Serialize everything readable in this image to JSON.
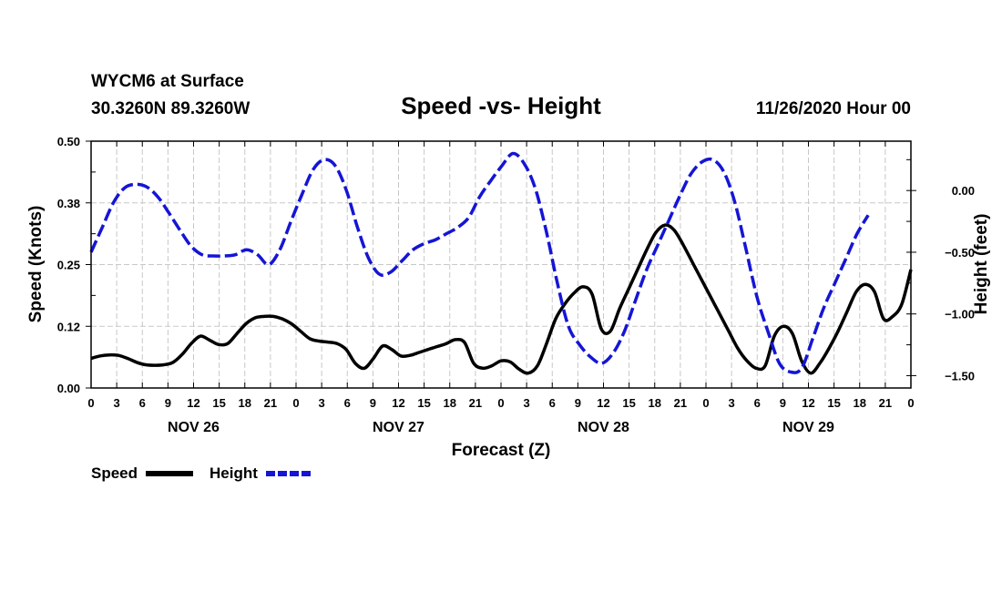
{
  "header": {
    "station": "WYCM6 at Surface",
    "location": "30.3260N 89.3260W",
    "title": "Speed -vs- Height",
    "datetime": "11/26/2020 Hour 00"
  },
  "chart_data": {
    "type": "line",
    "title": "Speed -vs- Height",
    "xlabel": "Forecast (Z)",
    "ylabel": "Speed (Knots)",
    "y2label": "Height (feet)",
    "x_unit": "hours from NOV 26 00Z",
    "xlim": [
      0,
      96
    ],
    "ylim": [
      0,
      0.5
    ],
    "y2lim": [
      -1.6,
      0.4
    ],
    "x_ticks": [
      0,
      3,
      6,
      9,
      12,
      15,
      18,
      21,
      24,
      27,
      30,
      33,
      36,
      39,
      42,
      45,
      48,
      51,
      54,
      57,
      60,
      63,
      66,
      69,
      72,
      75,
      78,
      81,
      84,
      87,
      90,
      93,
      96
    ],
    "x_tick_labels": [
      "0",
      "3",
      "6",
      "9",
      "12",
      "15",
      "18",
      "21",
      "0",
      "3",
      "6",
      "9",
      "12",
      "15",
      "18",
      "21",
      "0",
      "3",
      "6",
      "9",
      "12",
      "15",
      "18",
      "21",
      "0",
      "3",
      "6",
      "9",
      "12",
      "15",
      "18",
      "21",
      "0"
    ],
    "y_ticks": [
      0,
      0.125,
      0.25,
      0.375,
      0.5
    ],
    "y_tick_labels": [
      "0.00",
      "0.12",
      "0.25",
      "0.38",
      "0.50"
    ],
    "y2_ticks": [
      0,
      -0.5,
      -1.0,
      -1.5
    ],
    "y2_tick_labels": [
      "0.00",
      "−0.50",
      "−1.00",
      "−1.50"
    ],
    "day_labels": [
      {
        "x": 12,
        "label": "NOV 26"
      },
      {
        "x": 36,
        "label": "NOV 27"
      },
      {
        "x": 60,
        "label": "NOV 28"
      },
      {
        "x": 84,
        "label": "NOV 29"
      }
    ],
    "grid": true,
    "legend_position": "bottom-left",
    "series": [
      {
        "name": "Speed",
        "axis": "left",
        "color": "#000000",
        "style": "solid",
        "points": [
          [
            0,
            0.06
          ],
          [
            1,
            0.065
          ],
          [
            2,
            0.067
          ],
          [
            3,
            0.066
          ],
          [
            4,
            0.06
          ],
          [
            5,
            0.052
          ],
          [
            6,
            0.047
          ],
          [
            7,
            0.046
          ],
          [
            8,
            0.047
          ],
          [
            9,
            0.052
          ],
          [
            10,
            0.068
          ],
          [
            11,
            0.09
          ],
          [
            12,
            0.105
          ],
          [
            13,
            0.097
          ],
          [
            14,
            0.088
          ],
          [
            15,
            0.09
          ],
          [
            16,
            0.11
          ],
          [
            17,
            0.13
          ],
          [
            18,
            0.142
          ],
          [
            19,
            0.145
          ],
          [
            20,
            0.145
          ],
          [
            21,
            0.14
          ],
          [
            22,
            0.13
          ],
          [
            23,
            0.115
          ],
          [
            24,
            0.1
          ],
          [
            25,
            0.095
          ],
          [
            26,
            0.093
          ],
          [
            27,
            0.09
          ],
          [
            28,
            0.078
          ],
          [
            29,
            0.05
          ],
          [
            30,
            0.04
          ],
          [
            31,
            0.06
          ],
          [
            32,
            0.085
          ],
          [
            33,
            0.078
          ],
          [
            34,
            0.065
          ],
          [
            35,
            0.066
          ],
          [
            36,
            0.072
          ],
          [
            37,
            0.078
          ],
          [
            38,
            0.084
          ],
          [
            39,
            0.09
          ],
          [
            40,
            0.098
          ],
          [
            41,
            0.092
          ],
          [
            42,
            0.05
          ],
          [
            43,
            0.04
          ],
          [
            44,
            0.045
          ],
          [
            45,
            0.055
          ],
          [
            46,
            0.053
          ],
          [
            47,
            0.038
          ],
          [
            48,
            0.03
          ],
          [
            49,
            0.045
          ],
          [
            50,
            0.09
          ],
          [
            51,
            0.14
          ],
          [
            52,
            0.17
          ],
          [
            53,
            0.192
          ],
          [
            54,
            0.205
          ],
          [
            55,
            0.19
          ],
          [
            56,
            0.12
          ],
          [
            57,
            0.115
          ],
          [
            58,
            0.16
          ],
          [
            59,
            0.2
          ],
          [
            60,
            0.24
          ],
          [
            61,
            0.28
          ],
          [
            62,
            0.315
          ],
          [
            63,
            0.33
          ],
          [
            64,
            0.32
          ],
          [
            65,
            0.29
          ],
          [
            66,
            0.255
          ],
          [
            67,
            0.22
          ],
          [
            68,
            0.185
          ],
          [
            69,
            0.15
          ],
          [
            70,
            0.115
          ],
          [
            71,
            0.08
          ],
          [
            72,
            0.055
          ],
          [
            73,
            0.04
          ],
          [
            74,
            0.045
          ],
          [
            75,
            0.105
          ],
          [
            76,
            0.125
          ],
          [
            77,
            0.11
          ],
          [
            78,
            0.055
          ],
          [
            79,
            0.03
          ],
          [
            80,
            0.05
          ],
          [
            81,
            0.08
          ],
          [
            82,
            0.115
          ],
          [
            83,
            0.155
          ],
          [
            84,
            0.195
          ],
          [
            85,
            0.21
          ],
          [
            86,
            0.195
          ],
          [
            87,
            0.14
          ],
          [
            88,
            0.145
          ],
          [
            89,
            0.17
          ],
          [
            90,
            0.24
          ]
        ]
      },
      {
        "name": "Height",
        "axis": "right",
        "color": "#1515d5",
        "style": "dashed",
        "points": [
          [
            0,
            -0.5
          ],
          [
            1,
            -0.3
          ],
          [
            2,
            -0.1
          ],
          [
            3,
            0.02
          ],
          [
            4,
            0.05
          ],
          [
            5,
            0.03
          ],
          [
            6,
            -0.05
          ],
          [
            7,
            -0.18
          ],
          [
            8,
            -0.32
          ],
          [
            9,
            -0.45
          ],
          [
            10,
            -0.52
          ],
          [
            11,
            -0.53
          ],
          [
            12,
            -0.53
          ],
          [
            13,
            -0.52
          ],
          [
            14,
            -0.48
          ],
          [
            15,
            -0.52
          ],
          [
            16,
            -0.6
          ],
          [
            17,
            -0.48
          ],
          [
            18,
            -0.25
          ],
          [
            19,
            -0.03
          ],
          [
            20,
            0.17
          ],
          [
            21,
            0.25
          ],
          [
            22,
            0.2
          ],
          [
            23,
            0.0
          ],
          [
            24,
            -0.3
          ],
          [
            25,
            -0.55
          ],
          [
            26,
            -0.68
          ],
          [
            27,
            -0.66
          ],
          [
            28,
            -0.57
          ],
          [
            29,
            -0.48
          ],
          [
            30,
            -0.43
          ],
          [
            31,
            -0.4
          ],
          [
            32,
            -0.35
          ],
          [
            33,
            -0.3
          ],
          [
            34,
            -0.22
          ],
          [
            35,
            -0.05
          ],
          [
            36,
            0.08
          ],
          [
            37,
            0.2
          ],
          [
            38,
            0.3
          ],
          [
            39,
            0.22
          ],
          [
            40,
            0.02
          ],
          [
            41,
            -0.33
          ],
          [
            42,
            -0.75
          ],
          [
            43,
            -1.1
          ],
          [
            44,
            -1.25
          ],
          [
            45,
            -1.35
          ],
          [
            46,
            -1.4
          ],
          [
            47,
            -1.32
          ],
          [
            48,
            -1.15
          ],
          [
            49,
            -0.9
          ],
          [
            50,
            -0.65
          ],
          [
            51,
            -0.45
          ],
          [
            52,
            -0.25
          ],
          [
            53,
            -0.05
          ],
          [
            54,
            0.13
          ],
          [
            55,
            0.23
          ],
          [
            56,
            0.25
          ],
          [
            57,
            0.15
          ],
          [
            58,
            -0.1
          ],
          [
            59,
            -0.48
          ],
          [
            60,
            -0.87
          ],
          [
            61,
            -1.15
          ],
          [
            62,
            -1.4
          ],
          [
            63,
            -1.47
          ],
          [
            64,
            -1.44
          ],
          [
            65,
            -1.2
          ],
          [
            66,
            -0.95
          ],
          [
            67,
            -0.75
          ],
          [
            68,
            -0.55
          ],
          [
            69,
            -0.35
          ],
          [
            70,
            -0.2
          ]
        ]
      }
    ],
    "x_offset_note": "x in series points is in hours of plotted forecast time for the plotted window"
  },
  "legend": [
    {
      "label": "Speed",
      "color": "#000000",
      "style": "solid"
    },
    {
      "label": "Height",
      "color": "#1515d5",
      "style": "dashed"
    }
  ]
}
